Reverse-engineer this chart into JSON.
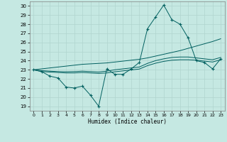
{
  "xlabel": "Humidex (Indice chaleur)",
  "xlim": [
    -0.5,
    23.5
  ],
  "ylim": [
    18.5,
    30.5
  ],
  "yticks": [
    19,
    20,
    21,
    22,
    23,
    24,
    25,
    26,
    27,
    28,
    29,
    30
  ],
  "xticks": [
    0,
    1,
    2,
    3,
    4,
    5,
    6,
    7,
    8,
    9,
    10,
    11,
    12,
    13,
    14,
    15,
    16,
    17,
    18,
    19,
    20,
    21,
    22,
    23
  ],
  "background_color": "#c5e8e2",
  "grid_color": "#b0d5ce",
  "line_color": "#005f5f",
  "main_series": [
    23.0,
    22.8,
    22.3,
    22.1,
    21.1,
    21.0,
    21.2,
    20.2,
    19.0,
    23.1,
    22.5,
    22.5,
    23.1,
    23.8,
    27.5,
    28.8,
    30.1,
    28.5,
    28.0,
    26.5,
    24.0,
    23.8,
    23.1,
    24.2
  ],
  "trend_series": [
    23.0,
    23.1,
    23.2,
    23.3,
    23.4,
    23.5,
    23.6,
    23.65,
    23.7,
    23.75,
    23.85,
    23.95,
    24.05,
    24.15,
    24.3,
    24.5,
    24.7,
    24.9,
    25.1,
    25.35,
    25.6,
    25.85,
    26.1,
    26.4
  ],
  "smooth_hi": [
    23.0,
    22.9,
    22.85,
    22.8,
    22.78,
    22.8,
    22.85,
    22.8,
    22.75,
    22.85,
    23.0,
    23.1,
    23.2,
    23.3,
    23.7,
    24.0,
    24.2,
    24.35,
    24.4,
    24.4,
    24.3,
    24.2,
    24.1,
    24.35
  ],
  "smooth_lo": [
    23.0,
    22.8,
    22.75,
    22.7,
    22.65,
    22.65,
    22.7,
    22.65,
    22.6,
    22.65,
    22.78,
    22.88,
    22.98,
    23.08,
    23.45,
    23.72,
    23.92,
    24.05,
    24.1,
    24.1,
    24.05,
    23.95,
    23.85,
    24.1
  ]
}
